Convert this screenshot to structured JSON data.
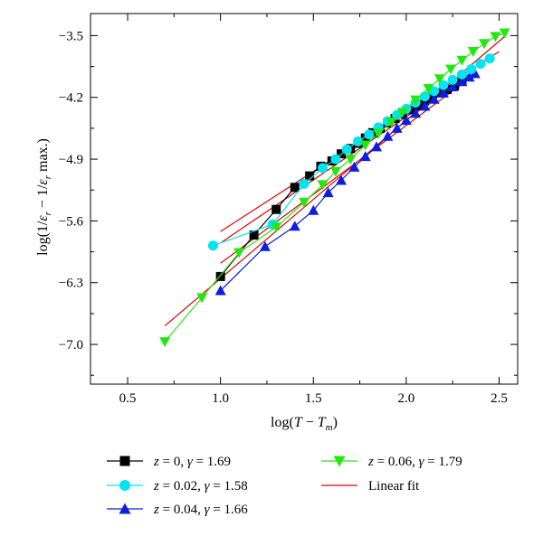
{
  "chart_data": {
    "type": "scatter",
    "xlabel": "log(T − T_m)",
    "ylabel": "log(1/ε_r − 1/ε_r max.)",
    "xlim": [
      0.3,
      2.6
    ],
    "ylim": [
      -7.45,
      -3.25
    ],
    "x_ticks": [
      "0.5",
      "1.0",
      "1.5",
      "2.0",
      "2.5"
    ],
    "x_tick_values": [
      0.5,
      1.0,
      1.5,
      2.0,
      2.5
    ],
    "y_ticks": [
      "−3.5",
      "−4.2",
      "−4.9",
      "−5.6",
      "−6.3",
      "−7.0"
    ],
    "y_tick_values": [
      -3.5,
      -4.2,
      -4.9,
      -5.6,
      -6.3,
      -7.0
    ],
    "grid": false,
    "legend_placement": "bottom, outside plot",
    "series": [
      {
        "name": "z = 0, γ = 1.69",
        "z": "0",
        "gamma": "1.69",
        "color": "#000000",
        "marker": "square",
        "x": [
          1.0,
          1.18,
          1.3,
          1.4,
          1.48,
          1.54,
          1.6,
          1.65,
          1.7,
          1.74,
          1.78,
          1.82,
          1.86,
          1.9,
          1.94,
          1.98,
          2.02,
          2.06,
          2.1,
          2.14,
          2.18,
          2.22,
          2.26,
          2.3
        ],
        "y": [
          -6.23,
          -5.76,
          -5.47,
          -5.22,
          -5.09,
          -4.98,
          -4.92,
          -4.84,
          -4.78,
          -4.72,
          -4.66,
          -4.6,
          -4.55,
          -4.49,
          -4.44,
          -4.39,
          -4.34,
          -4.29,
          -4.24,
          -4.2,
          -4.15,
          -4.11,
          -4.07,
          -4.02
        ],
        "fit": {
          "x": [
            1.0,
            2.35
          ],
          "y": [
            -5.85,
            -3.92
          ]
        }
      },
      {
        "name": "z = 0.02, γ = 1.58",
        "z": "0.02",
        "gamma": "1.58",
        "color": "#00e5f0",
        "marker": "circle",
        "x": [
          0.96,
          1.28,
          1.45,
          1.55,
          1.62,
          1.68,
          1.74,
          1.8,
          1.85,
          1.9,
          1.95,
          2.0,
          2.05,
          2.1,
          2.15,
          2.2,
          2.25,
          2.3,
          2.35,
          2.4,
          2.45
        ],
        "y": [
          -5.88,
          -5.64,
          -5.18,
          -5.0,
          -4.9,
          -4.79,
          -4.7,
          -4.62,
          -4.54,
          -4.47,
          -4.4,
          -4.33,
          -4.26,
          -4.19,
          -4.13,
          -4.06,
          -4.0,
          -3.94,
          -3.88,
          -3.82,
          -3.76
        ],
        "fit": {
          "x": [
            1.0,
            2.5
          ],
          "y": [
            -5.72,
            -3.68
          ]
        }
      },
      {
        "name": "z = 0.04, γ = 1.66",
        "z": "0.04",
        "gamma": "1.66",
        "color": "#0a1ee0",
        "marker": "triangle-up",
        "x": [
          1.0,
          1.24,
          1.4,
          1.5,
          1.58,
          1.65,
          1.72,
          1.78,
          1.84,
          1.9,
          1.95,
          2.0,
          2.05,
          2.1,
          2.15,
          2.2,
          2.25,
          2.3,
          2.34,
          2.37
        ],
        "y": [
          -6.39,
          -5.89,
          -5.66,
          -5.48,
          -5.28,
          -5.14,
          -4.99,
          -4.87,
          -4.76,
          -4.64,
          -4.55,
          -4.46,
          -4.38,
          -4.3,
          -4.22,
          -4.15,
          -4.08,
          -4.02,
          -3.97,
          -3.93
        ],
        "fit": {
          "x": [
            1.0,
            2.37
          ],
          "y": [
            -6.08,
            -3.94
          ]
        }
      },
      {
        "name": "z = 0.06, γ = 1.79",
        "z": "0.06",
        "gamma": "1.79",
        "color": "#22e810",
        "marker": "triangle-down",
        "x": [
          0.7,
          0.9,
          1.1,
          1.3,
          1.45,
          1.55,
          1.62,
          1.7,
          1.78,
          1.85,
          1.92,
          1.98,
          2.05,
          2.12,
          2.18,
          2.24,
          2.3,
          2.36,
          2.42,
          2.48,
          2.53
        ],
        "y": [
          -6.97,
          -6.47,
          -5.96,
          -5.67,
          -5.39,
          -5.19,
          -5.04,
          -4.9,
          -4.74,
          -4.61,
          -4.48,
          -4.37,
          -4.23,
          -4.1,
          -3.99,
          -3.88,
          -3.78,
          -3.68,
          -3.59,
          -3.51,
          -3.47
        ],
        "fit": {
          "x": [
            0.7,
            2.53
          ],
          "y": [
            -6.79,
            -3.51
          ]
        }
      }
    ],
    "legend": [
      {
        "z": "0",
        "gamma": "1.69",
        "marker": "square",
        "color": "#000000"
      },
      {
        "z": "0.02",
        "gamma": "1.58",
        "marker": "circle",
        "color": "#00e5f0"
      },
      {
        "z": "0.04",
        "gamma": "1.66",
        "marker": "triangle-up",
        "color": "#0a1ee0"
      },
      {
        "z": "0.06",
        "gamma": "1.79",
        "marker": "triangle-down",
        "color": "#22e810"
      },
      {
        "label": "Linear fit",
        "color": "#e00000",
        "marker": "line"
      }
    ],
    "fit_color": "#e00000"
  }
}
